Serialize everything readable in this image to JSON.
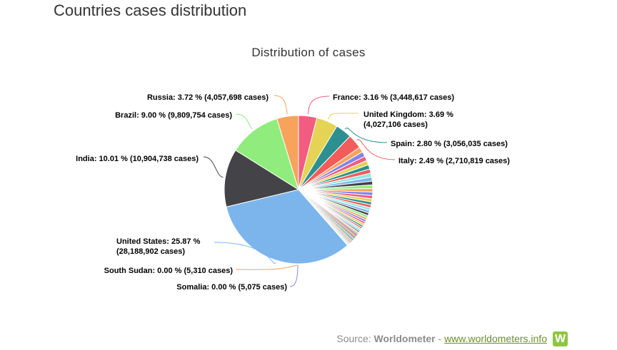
{
  "header": {
    "title": "Countries cases distribution"
  },
  "footer": {
    "source_prefix": "Source:",
    "source_name": "Worldometer",
    "separator": "-",
    "source_link": "www.worldometers.info",
    "logo_letter": "W"
  },
  "chart_data": {
    "type": "pie",
    "title": "Distribution of cases",
    "start_angle_deg": 0,
    "other_slices_pct": [
      0.9,
      0.85,
      0.8,
      0.78,
      0.75,
      0.72,
      0.7,
      0.68,
      0.65,
      0.62,
      0.6,
      0.58,
      0.56,
      0.54,
      0.52,
      0.5,
      0.48,
      0.46,
      0.44,
      0.42,
      0.4,
      0.38,
      0.36,
      0.34,
      0.32,
      0.3,
      0.28,
      0.26,
      0.24,
      0.22,
      0.2,
      0.19,
      0.18,
      0.17,
      0.16,
      0.15,
      0.14,
      0.13,
      0.12,
      0.11,
      0.1,
      0.095,
      0.09,
      0.085,
      0.08,
      0.075,
      0.07,
      0.065,
      0.06,
      0.055,
      0.05,
      0.045,
      0.04,
      0.035,
      0.03,
      0.025,
      0.02,
      0.018,
      0.016,
      0.014,
      0.012,
      0.01,
      0.008,
      0.006,
      0.005,
      0.004,
      0.003,
      0.002
    ],
    "other_colors": [
      "#f7a35c",
      "#8085e9",
      "#f15c80",
      "#e4d354",
      "#2b908f",
      "#f45b5b",
      "#91e8e1",
      "#7cb5ec",
      "#434348",
      "#90ed7d"
    ],
    "labeled_slices": [
      {
        "name": "France",
        "pct": 3.16,
        "cases": "3,448,617",
        "color": "#f15c80",
        "label": "France: 3.16 % (3,448,617 cases)"
      },
      {
        "name": "United Kingdom",
        "pct": 3.69,
        "cases": "4,027,106",
        "color": "#e4d354",
        "label1": "United Kingdom: 3.69 %",
        "label2": "(4,027,106 cases)"
      },
      {
        "name": "Spain",
        "pct": 2.8,
        "cases": "3,056,035",
        "color": "#2b908f",
        "label": "Spain: 2.80 % (3,056,035 cases)"
      },
      {
        "name": "Italy",
        "pct": 2.49,
        "cases": "2,710,819",
        "color": "#f45b5b",
        "label": "Italy: 2.49 % (2,710,819 cases)"
      },
      {
        "name": "United States",
        "pct": 25.87,
        "cases": "28,188,902",
        "color": "#7cb5ec",
        "label1": "United States: 25.87 %",
        "label2": "(28,188,902 cases)"
      },
      {
        "name": "India",
        "pct": 10.01,
        "cases": "10,904,738",
        "color": "#434348",
        "label": "India: 10.01 % (10,904,738 cases)"
      },
      {
        "name": "Brazil",
        "pct": 9.0,
        "cases": "9,809,754",
        "color": "#90ed7d",
        "label": "Brazil: 9.00 % (9,809,754 cases)"
      },
      {
        "name": "Russia",
        "pct": 3.72,
        "cases": "4,057,698",
        "color": "#f7a35c",
        "label": "Russia: 3.72 % (4,057,698 cases)"
      },
      {
        "name": "South Sudan",
        "pct": 0.0,
        "cases": "5,310",
        "color": "#f7a35c",
        "label": "South Sudan: 0.00 % (5,310 cases)"
      },
      {
        "name": "Somalia",
        "pct": 0.0,
        "cases": "5,075",
        "color": "#8085e9",
        "label": "Somalia: 0.00 % (5,075 cases)"
      }
    ]
  }
}
